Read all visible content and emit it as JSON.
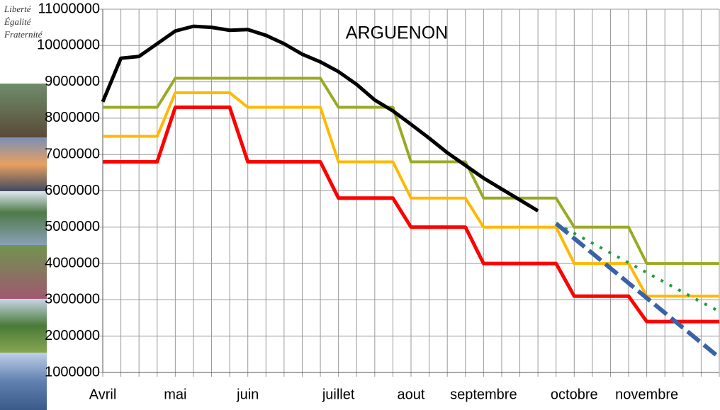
{
  "chart_data": {
    "type": "line",
    "title": "ARGUENON",
    "annotations": [
      "Liberté",
      "Égalité",
      "Fraternité"
    ],
    "categories": [
      "Avril",
      null,
      null,
      null,
      "mai",
      null,
      null,
      null,
      "juin",
      null,
      null,
      null,
      null,
      "juillet",
      null,
      null,
      null,
      "aout",
      null,
      null,
      null,
      "septembre",
      null,
      null,
      null,
      null,
      "octobre",
      null,
      null,
      null,
      "novembre",
      null,
      null,
      null,
      null
    ],
    "ylim": [
      1000000,
      11000000
    ],
    "yticks": [
      1000000,
      2000000,
      3000000,
      4000000,
      5000000,
      6000000,
      7000000,
      8000000,
      9000000,
      10000000,
      11000000
    ],
    "grid": true,
    "series": [
      {
        "color": "#99aa22",
        "style": "solid",
        "width": 4,
        "values": [
          8300000,
          8300000,
          8300000,
          8300000,
          9100000,
          9100000,
          9100000,
          9100000,
          9100000,
          9100000,
          9100000,
          9100000,
          9100000,
          8300000,
          8300000,
          8300000,
          8300000,
          6800000,
          6800000,
          6800000,
          6800000,
          5800000,
          5800000,
          5800000,
          5800000,
          5800000,
          5000000,
          5000000,
          5000000,
          5000000,
          4000000,
          4000000,
          4000000,
          4000000,
          4000000
        ]
      },
      {
        "color": "#ffb800",
        "style": "solid",
        "width": 4,
        "values": [
          7500000,
          7500000,
          7500000,
          7500000,
          8700000,
          8700000,
          8700000,
          8700000,
          8300000,
          8300000,
          8300000,
          8300000,
          8300000,
          6800000,
          6800000,
          6800000,
          6800000,
          5800000,
          5800000,
          5800000,
          5800000,
          5000000,
          5000000,
          5000000,
          5000000,
          5000000,
          4000000,
          4000000,
          4000000,
          4000000,
          3100000,
          3100000,
          3100000,
          3100000,
          3100000
        ]
      },
      {
        "color": "#ff0000",
        "style": "solid",
        "width": 5,
        "values": [
          6800000,
          6800000,
          6800000,
          6800000,
          8300000,
          8300000,
          8300000,
          8300000,
          6800000,
          6800000,
          6800000,
          6800000,
          6800000,
          5800000,
          5800000,
          5800000,
          5800000,
          5000000,
          5000000,
          5000000,
          5000000,
          4000000,
          4000000,
          4000000,
          4000000,
          4000000,
          3100000,
          3100000,
          3100000,
          3100000,
          2400000,
          2400000,
          2400000,
          2400000,
          2400000
        ]
      },
      {
        "color": "#000000",
        "style": "solid",
        "width": 5,
        "values": [
          8450000,
          9650000,
          9700000,
          10050000,
          10400000,
          10530000,
          10500000,
          10420000,
          10440000,
          10280000,
          10050000,
          9760000,
          9550000,
          9280000,
          8930000,
          8500000,
          8200000,
          7830000,
          7450000,
          7050000,
          6700000,
          6350000,
          6050000,
          5750000,
          5450000,
          null,
          null,
          null,
          null,
          null,
          null,
          null,
          null,
          null,
          null
        ]
      },
      {
        "color": "#1e9e3c",
        "style": "dotted",
        "width": 4,
        "values": [
          null,
          null,
          null,
          null,
          null,
          null,
          null,
          null,
          null,
          null,
          null,
          null,
          null,
          null,
          null,
          null,
          null,
          null,
          null,
          null,
          null,
          null,
          null,
          null,
          null,
          5100000,
          4830000,
          4560000,
          4290000,
          4020000,
          3750000,
          3480000,
          3210000,
          2940000,
          2680000
        ]
      },
      {
        "color": "#3a62a6",
        "style": "dashed",
        "width": 6,
        "values": [
          null,
          null,
          null,
          null,
          null,
          null,
          null,
          null,
          null,
          null,
          null,
          null,
          null,
          null,
          null,
          null,
          null,
          null,
          null,
          null,
          null,
          null,
          null,
          null,
          null,
          5100000,
          4690000,
          4280000,
          3870000,
          3460000,
          3050000,
          2640000,
          2230000,
          1820000,
          1410000
        ]
      }
    ]
  }
}
